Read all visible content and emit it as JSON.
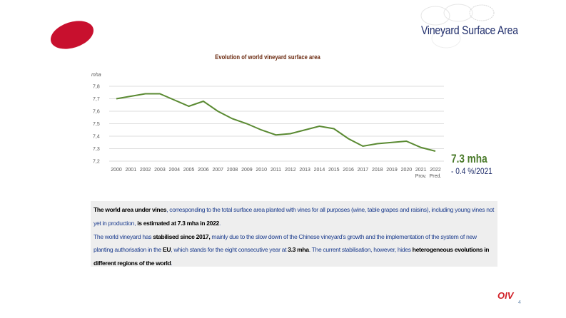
{
  "header": {
    "title": "Vineyard Surface Area"
  },
  "highlight": {
    "value": "7.3 mha",
    "change": "- 0.4 %/2021"
  },
  "text_block": {
    "p1_bold1": "The world area under vines",
    "p1_text1": ", corresponding to the total surface area planted with vines for all purposes (wine, table grapes and raisins), including young vines not yet in production, ",
    "p1_bold2": "is estimated at 7.3 mha in 2022",
    "p1_end": ".",
    "p2_text1": "The world vineyard has ",
    "p2_bold1": "stabilised since 2017,",
    "p2_text2": " mainly due to the slow down of the Chinese vineyard's growth  and the implementation of the system of new planting authorisation in the ",
    "p2_bold2": "EU",
    "p2_text3": ", which stands for the eight consecutive year at ",
    "p2_bold3": "3.3 mha",
    "p2_text4": ". The current stabilisation, however, hides ",
    "p2_bold4": "heterogeneous evolutions in different regions of the world",
    "p2_end": "."
  },
  "footer": {
    "brand": "OIV",
    "page": "4"
  },
  "chart_data": {
    "type": "line",
    "title": "Evolution of world vineyard surface area",
    "ylabel": "mha",
    "xlabel": "",
    "categories": [
      "2000",
      "2001",
      "2002",
      "2003",
      "2004",
      "2005",
      "2006",
      "2007",
      "2008",
      "2009",
      "2010",
      "2011",
      "2012",
      "2013",
      "2014",
      "2015",
      "2016",
      "2017",
      "2018",
      "2019",
      "2020",
      "2021",
      "2022"
    ],
    "category_sublabels": {
      "2021": "Prov.",
      "2022": "Pred."
    },
    "values": [
      7.7,
      7.72,
      7.74,
      7.74,
      7.69,
      7.64,
      7.68,
      7.6,
      7.54,
      7.5,
      7.45,
      7.41,
      7.42,
      7.45,
      7.48,
      7.46,
      7.38,
      7.32,
      7.34,
      7.35,
      7.36,
      7.31,
      7.28
    ],
    "ylim": [
      7.2,
      7.8
    ],
    "yticks": [
      "7,2",
      "7,3",
      "7,4",
      "7,5",
      "7,6",
      "7,7",
      "7,8"
    ],
    "grid": true,
    "line_color": "#5a8a32"
  }
}
